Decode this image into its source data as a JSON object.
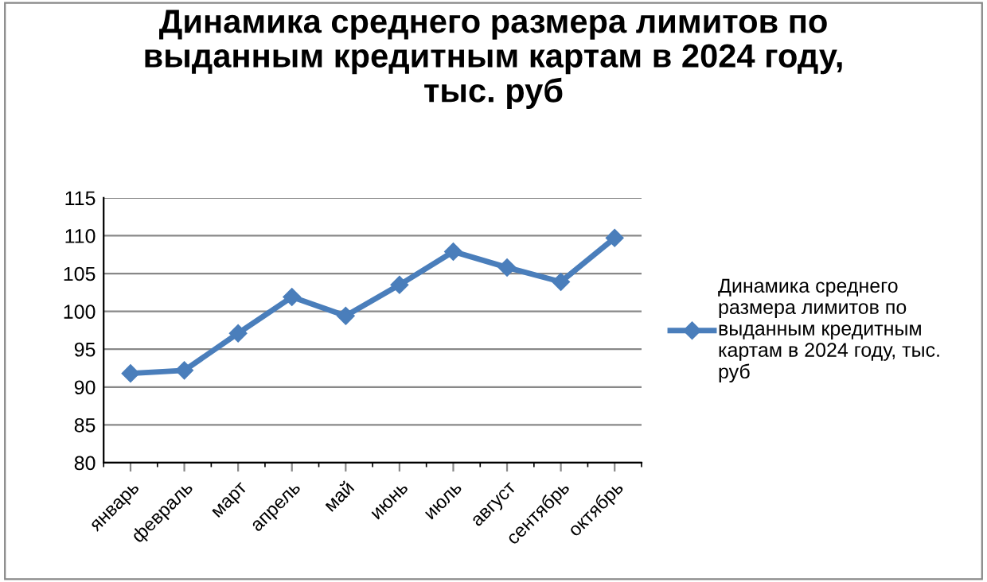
{
  "chart_data": {
    "type": "line",
    "title": "Динамика среднего размера лимитов по\nвыданным кредитным картам в 2024 году,\nтыс. руб",
    "categories": [
      "январь",
      "февраль",
      "март",
      "апрель",
      "май",
      "июнь",
      "июль",
      "август",
      "сентябрь",
      "октябрь"
    ],
    "series": [
      {
        "name": "Динамика среднего\nразмера лимитов по\nвыданным кредитным\nкартам в 2024 году, тыс.\nруб",
        "color": "#4a7ebb",
        "values": [
          91.8,
          92.2,
          97.1,
          101.9,
          99.4,
          103.5,
          107.9,
          105.8,
          103.9,
          109.7
        ]
      }
    ],
    "ylim": [
      80,
      115
    ],
    "yticks": [
      80,
      85,
      90,
      95,
      100,
      105,
      110,
      115
    ],
    "grid": "y",
    "legend": "right",
    "marker": "diamond",
    "line_style": "solid"
  }
}
